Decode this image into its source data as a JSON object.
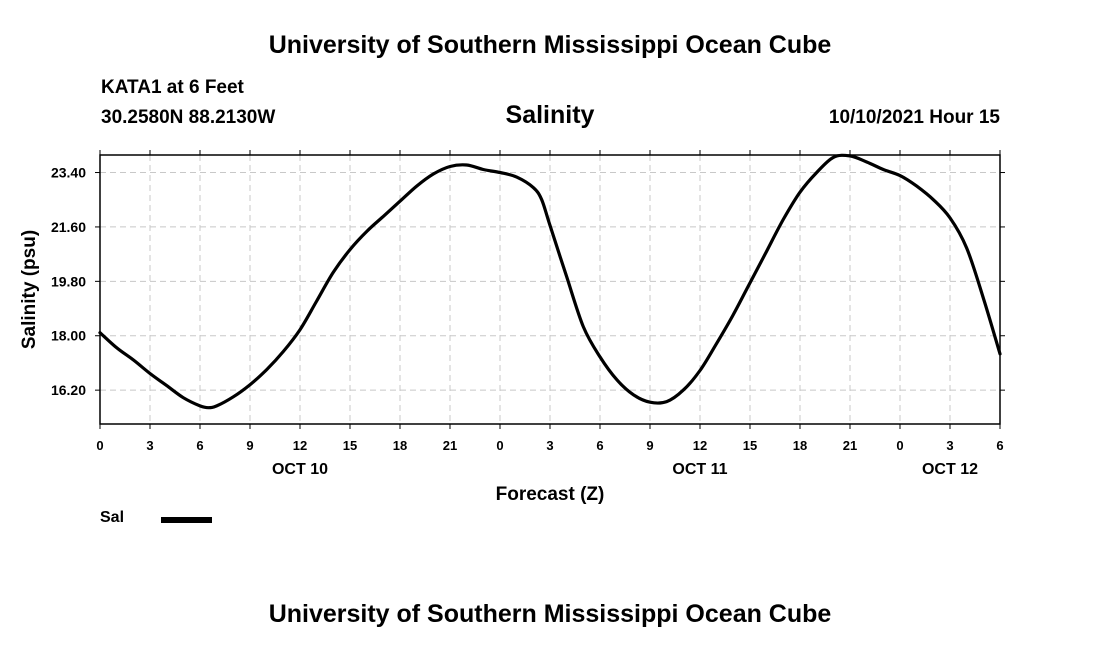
{
  "header": {
    "title_top": "University of Southern Mississippi Ocean Cube",
    "station": "KATA1 at 6 Feet",
    "coords": "30.2580N  88.2130W",
    "variable": "Salinity",
    "datetime": "10/10/2021 Hour 15"
  },
  "footer": {
    "title_bottom": "University of Southern Mississippi Ocean Cube"
  },
  "legend": {
    "label": "Sal"
  },
  "colors": {
    "line": "#000000",
    "grid": "#c8c8c8",
    "frame": "#000000"
  },
  "chart_data": {
    "type": "line",
    "title": "Salinity",
    "xlabel": "Forecast (Z)",
    "ylabel": "Salinity (psu)",
    "ylim": [
      15.08,
      23.98
    ],
    "xlim": [
      0,
      54
    ],
    "yticks": [
      16.2,
      18.0,
      19.8,
      21.6,
      23.4
    ],
    "ytick_labels": [
      "16.20",
      "18.00",
      "19.80",
      "21.60",
      "23.40"
    ],
    "xticks": [
      0,
      3,
      6,
      9,
      12,
      15,
      18,
      21,
      24,
      27,
      30,
      33,
      36,
      39,
      42,
      45,
      48,
      51,
      54
    ],
    "xtick_labels": [
      "0",
      "3",
      "6",
      "9",
      "12",
      "15",
      "18",
      "21",
      "0",
      "3",
      "6",
      "9",
      "12",
      "15",
      "18",
      "21",
      "0",
      "3",
      "6"
    ],
    "day_labels": [
      {
        "x": 12,
        "label": "OCT 10"
      },
      {
        "x": 36,
        "label": "OCT 11"
      },
      {
        "x": 51,
        "label": "OCT 12"
      }
    ],
    "grid": true,
    "series": [
      {
        "name": "Sal",
        "x": [
          0,
          1,
          2,
          3,
          4,
          5,
          6,
          6.5,
          7,
          8,
          9,
          10,
          11,
          12,
          13,
          14,
          15,
          16,
          17,
          18,
          19,
          20,
          21,
          22,
          23,
          24,
          25,
          26,
          26.5,
          27,
          28,
          29,
          30,
          31,
          32,
          33,
          34,
          35,
          36,
          37,
          38,
          39,
          40,
          41,
          42,
          43,
          44,
          45,
          46,
          47,
          48,
          49,
          50,
          51,
          52,
          53,
          54
        ],
        "y": [
          18.1,
          17.6,
          17.2,
          16.75,
          16.35,
          15.95,
          15.68,
          15.62,
          15.68,
          15.98,
          16.38,
          16.88,
          17.48,
          18.2,
          19.15,
          20.1,
          20.85,
          21.45,
          21.95,
          22.45,
          22.95,
          23.35,
          23.6,
          23.65,
          23.5,
          23.4,
          23.25,
          22.9,
          22.5,
          21.65,
          19.95,
          18.3,
          17.3,
          16.55,
          16.05,
          15.8,
          15.82,
          16.2,
          16.85,
          17.75,
          18.7,
          19.75,
          20.8,
          21.85,
          22.75,
          23.4,
          23.9,
          23.95,
          23.75,
          23.5,
          23.3,
          22.95,
          22.5,
          21.9,
          20.9,
          19.25,
          17.4
        ]
      }
    ]
  }
}
